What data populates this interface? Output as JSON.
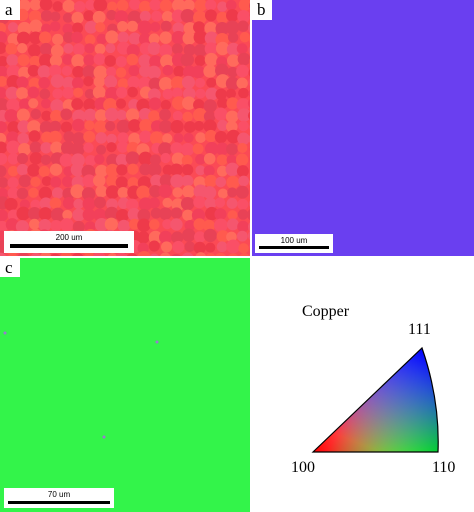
{
  "panels": [
    {
      "label": "a",
      "scale_bar": "200 um"
    },
    {
      "label": "b",
      "scale_bar": "100 um"
    },
    {
      "label": "c",
      "scale_bar": "70 um"
    }
  ],
  "legend": {
    "title": "Copper",
    "corners": [
      "111",
      "100",
      "110"
    ]
  }
}
